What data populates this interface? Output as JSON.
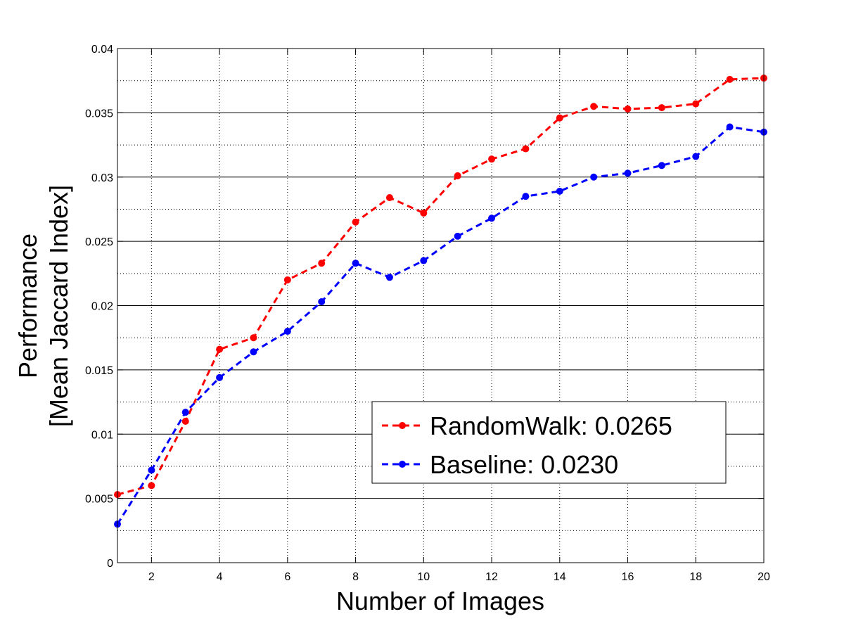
{
  "chart_data": {
    "type": "line",
    "xlabel": "Number of Images",
    "ylabel": [
      "Performance",
      "[Mean Jaccard Index]"
    ],
    "xlim": [
      1,
      20
    ],
    "ylim": [
      0,
      0.04
    ],
    "xticks": [
      2,
      4,
      6,
      8,
      10,
      12,
      14,
      16,
      18,
      20
    ],
    "yticks": [
      0,
      0.005,
      0.01,
      0.015,
      0.02,
      0.025,
      0.03,
      0.035,
      0.04
    ],
    "ytick_labels": [
      "0",
      "0.005",
      "0.01",
      "0.015",
      "0.02",
      "0.025",
      "0.03",
      "0.035",
      "0.04"
    ],
    "grid": "dotted, solid horizontal major lines",
    "legend_position": "lower-right",
    "x": [
      1,
      2,
      3,
      4,
      5,
      6,
      7,
      8,
      9,
      10,
      11,
      12,
      13,
      14,
      15,
      16,
      17,
      18,
      19,
      20
    ],
    "series": [
      {
        "name": "RandomWalk: 0.0265",
        "color": "#ff0000",
        "values": [
          0.0053,
          0.006,
          0.011,
          0.0166,
          0.0175,
          0.022,
          0.0233,
          0.0265,
          0.0284,
          0.0272,
          0.0301,
          0.0314,
          0.0322,
          0.0346,
          0.0355,
          0.0353,
          0.0354,
          0.0357,
          0.0376,
          0.0377
        ]
      },
      {
        "name": "Baseline: 0.0230",
        "color": "#0000ff",
        "values": [
          0.003,
          0.0072,
          0.0117,
          0.0144,
          0.0164,
          0.018,
          0.0203,
          0.0233,
          0.0222,
          0.0235,
          0.0254,
          0.0268,
          0.0285,
          0.0289,
          0.03,
          0.0303,
          0.0309,
          0.0316,
          0.0339,
          0.0335
        ]
      }
    ]
  }
}
